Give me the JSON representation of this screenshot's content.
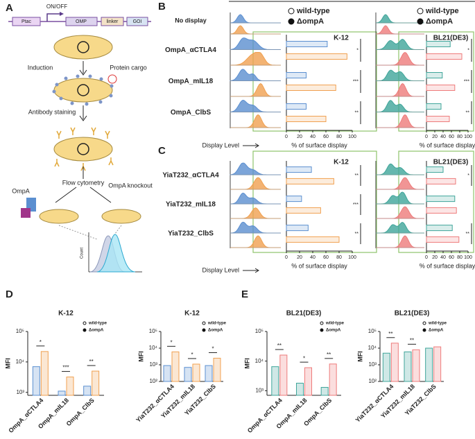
{
  "panels": [
    "A",
    "B",
    "C",
    "D",
    "E"
  ],
  "diagram": {
    "promoter": "Ptac",
    "switch": "ON/OFF",
    "parts": [
      "OMP",
      "linker",
      "GOI"
    ],
    "steps": [
      "Induction",
      "Antibody staining",
      "Flow cytometry"
    ],
    "callouts": [
      "Protein cargo",
      "OmpA",
      "OmpA knockout"
    ],
    "count_label": "Count"
  },
  "reference_label": "No display",
  "histogram_axis_labels": [
    "Display Level",
    "Display Level"
  ],
  "chart_data": [
    {
      "type": "hbar",
      "title": "K-12",
      "categories": [
        "OmpA_αCTLA4",
        "OmpA_mIL18",
        "OmpA_ClbS"
      ],
      "series": [
        {
          "name": "wild-type",
          "color": "#5b8fd0",
          "values": [
            62,
            30,
            30
          ]
        },
        {
          "name": "ΔompA",
          "color": "#f0a050",
          "values": [
            92,
            75,
            60
          ]
        }
      ],
      "xlim": [
        0,
        100
      ],
      "xticks": [
        0,
        20,
        40,
        60,
        80,
        100
      ],
      "xlabel": "% of surface display",
      "significance": [
        "*",
        "***",
        "**"
      ]
    },
    {
      "type": "hbar",
      "title": "BL21(DE3)",
      "series": [
        {
          "name": "wild-type",
          "color": "#3fa59a",
          "values": [
            57,
            38,
            35
          ]
        },
        {
          "name": "ΔompA",
          "color": "#ee7b7b",
          "values": [
            85,
            68,
            55
          ]
        }
      ],
      "xlim": [
        0,
        100
      ],
      "xticks": [
        0,
        20,
        40,
        60,
        80,
        100
      ],
      "xlabel": "% of surface display",
      "significance": [
        "*",
        "***",
        "**"
      ]
    },
    {
      "type": "hbar",
      "title": "K-12",
      "categories": [
        "YiaT232_αCTLA4",
        "YiaT232_mIL18",
        "YiaT232_ClbS"
      ],
      "series": [
        {
          "color": "#5b8fd0",
          "values": [
            38,
            23,
            33
          ]
        },
        {
          "color": "#f0a050",
          "values": [
            72,
            52,
            80
          ]
        }
      ],
      "xlim": [
        0,
        100
      ],
      "xticks": [
        0,
        20,
        40,
        60,
        80,
        100
      ],
      "xlabel": "% of surface display",
      "significance": [
        "**",
        "***",
        "**"
      ]
    },
    {
      "type": "hbar",
      "title": "BL21(DE3)",
      "series": [
        {
          "color": "#3fa59a",
          "values": [
            40,
            68,
            62
          ]
        },
        {
          "color": "#ee7b7b",
          "values": [
            70,
            72,
            78
          ]
        }
      ],
      "xlim": [
        0,
        100
      ],
      "xticks": [
        0,
        20,
        40,
        60,
        80,
        100
      ],
      "xlabel": "% of surface display",
      "significance": [
        "*",
        null,
        "**"
      ]
    },
    {
      "type": "logbar",
      "title": "K-12",
      "categories": [
        "OmpA_αCTLA4",
        "OmpA_mIL18",
        "OmpA_ClbS"
      ],
      "series": [
        {
          "name": "wild-type",
          "color": "#5b8fd0",
          "values": [
            7000,
            1100,
            1600
          ]
        },
        {
          "name": "ΔompA",
          "color": "#f0a050",
          "values": [
            22000,
            3200,
            5000
          ]
        }
      ],
      "ylabel": "MFI",
      "log": true,
      "ylim": [
        800,
        100000
      ],
      "yticks": [
        {
          "value": 1000,
          "label": "10³"
        },
        {
          "value": 10000,
          "label": "10⁴"
        },
        {
          "value": 100000,
          "label": "10⁵"
        }
      ],
      "significance": [
        "*",
        "***",
        "**"
      ]
    },
    {
      "type": "logbar",
      "title": "K-12",
      "categories": [
        "YiaT232_αCTLA4",
        "YiaT232_mIL18",
        "YiaT232_ClbS"
      ],
      "series": [
        {
          "name": "wild-type",
          "color": "#5b8fd0",
          "values": [
            900,
            700,
            900
          ]
        },
        {
          "name": "ΔompA",
          "color": "#f0a050",
          "values": [
            6000,
            1100,
            2500
          ]
        }
      ],
      "ylabel": "MFI",
      "log": true,
      "ylim": [
        100,
        100000
      ],
      "yticks": [
        {
          "value": 100,
          "label": "10²"
        },
        {
          "value": 1000,
          "label": "10³"
        },
        {
          "value": 10000,
          "label": "10⁴"
        },
        {
          "value": 100000,
          "label": "10⁵"
        }
      ],
      "significance": [
        "*",
        "*",
        "*"
      ]
    },
    {
      "type": "logbar",
      "title": "BL21(DE3)",
      "categories": [
        "OmpA_αCTLA4",
        "OmpA_mIL18",
        "OmpA_ClbS"
      ],
      "series": [
        {
          "name": "wild-type",
          "color": "#3fa59a",
          "values": [
            6500,
            1800,
            1300
          ]
        },
        {
          "name": "ΔompA",
          "color": "#ee7b7b",
          "values": [
            16000,
            6000,
            8000
          ]
        }
      ],
      "ylabel": "MFI",
      "log": true,
      "ylim": [
        700,
        100000
      ],
      "yticks": [
        {
          "value": 1000,
          "label": "10³"
        },
        {
          "value": 10000,
          "label": "10⁴"
        },
        {
          "value": 100000,
          "label": "10⁵"
        }
      ],
      "significance": [
        "**",
        "*",
        "**"
      ]
    },
    {
      "type": "logbar",
      "title": "BL21(DE3)",
      "categories": [
        "YiaT232_αCTLA4",
        "YiaT232_mIL18",
        "YiaT232_ClbS"
      ],
      "series": [
        {
          "name": "wild-type",
          "color": "#3fa59a",
          "values": [
            5000,
            6000,
            10000
          ]
        },
        {
          "name": "ΔompA",
          "color": "#ee7b7b",
          "values": [
            20000,
            8000,
            12000
          ]
        }
      ],
      "ylabel": "MFI",
      "log": true,
      "ylim": [
        100,
        100000
      ],
      "yticks": [
        {
          "value": 100,
          "label": "10²"
        },
        {
          "value": 1000,
          "label": "10³"
        },
        {
          "value": 10000,
          "label": "10⁴"
        },
        {
          "value": 100000,
          "label": "10⁵"
        }
      ],
      "significance": [
        "**",
        "**",
        null
      ]
    }
  ]
}
